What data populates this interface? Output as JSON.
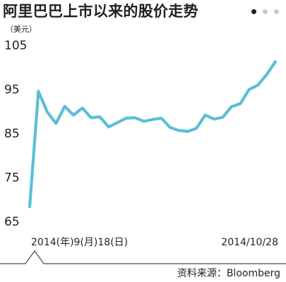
{
  "header": {
    "title": "阿里巴巴上市以来的股价走势",
    "unit": "（美元）"
  },
  "carousel": {
    "dots": [
      "#231f20",
      "#c8c8c8",
      "#c8c8c8"
    ]
  },
  "colors": {
    "line": "#5bbfd6",
    "axis": "#231f20",
    "grid": "#d8d8d8"
  },
  "chart_data": {
    "type": "line",
    "title": "阿里巴巴上市以来的股价走势",
    "ylabel": "（美元）",
    "xlabel": "",
    "ylim": [
      65,
      105
    ],
    "yticks": [
      105,
      95,
      85,
      75,
      65
    ],
    "x_start_label": "2014(年)9(月)18(日)",
    "x_end_label": "2014/10/28",
    "grid": false,
    "series": [
      {
        "values": [
          68,
          94.2,
          89.5,
          86.9,
          90.8,
          88.8,
          90.4,
          88.2,
          88.4,
          86.1,
          87.1,
          88.1,
          88.2,
          87.4,
          87.8,
          88.1,
          86.0,
          85.3,
          85.1,
          85.8,
          88.8,
          87.9,
          88.3,
          90.7,
          91.4,
          94.6,
          95.6,
          98.0,
          100.9
        ]
      }
    ]
  },
  "footer": {
    "source": "资料来源：Bloomberg"
  }
}
